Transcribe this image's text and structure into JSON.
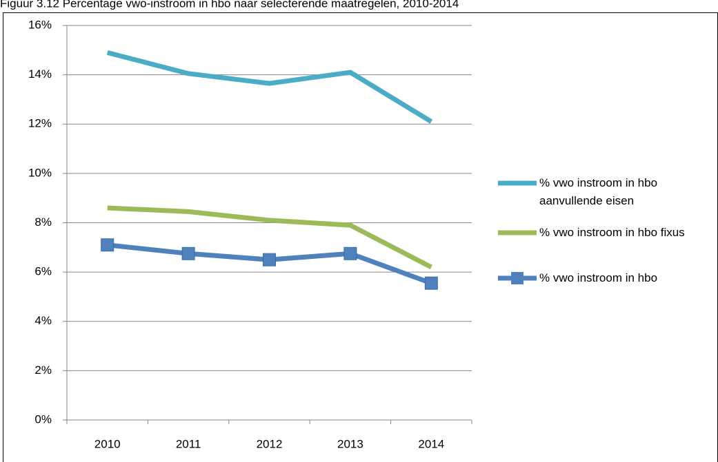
{
  "chart_data": {
    "type": "line",
    "title": "Figuur 3.12 Percentage vwo-instroom in hbo naar selecterende maatregelen, 2010-2014",
    "categories": [
      "2010",
      "2011",
      "2012",
      "2013",
      "2014"
    ],
    "series": [
      {
        "name": "% vwo instroom in hbo aanvullende eisen",
        "color": "#4bacc6",
        "values": [
          14.9,
          14.05,
          13.65,
          14.1,
          12.1
        ]
      },
      {
        "name": "% vwo instroom in hbo fixus",
        "color": "#9bbb59",
        "values": [
          8.6,
          8.45,
          8.1,
          7.9,
          6.2
        ]
      },
      {
        "name": "% vwo instroom in hbo",
        "color": "#4f81bd",
        "values": [
          7.1,
          6.75,
          6.5,
          6.75,
          5.55
        ],
        "marker": "square"
      }
    ],
    "ylim": [
      0,
      16
    ],
    "yticks": [
      {
        "value": 0,
        "label": "0%"
      },
      {
        "value": 2,
        "label": "2%"
      },
      {
        "value": 4,
        "label": "4%"
      },
      {
        "value": 6,
        "label": "6%"
      },
      {
        "value": 8,
        "label": "8%"
      },
      {
        "value": 10,
        "label": "10%"
      },
      {
        "value": 12,
        "label": "12%"
      },
      {
        "value": 14,
        "label": "14%"
      },
      {
        "value": 16,
        "label": "16%"
      }
    ],
    "grid": true,
    "legend": "right"
  }
}
